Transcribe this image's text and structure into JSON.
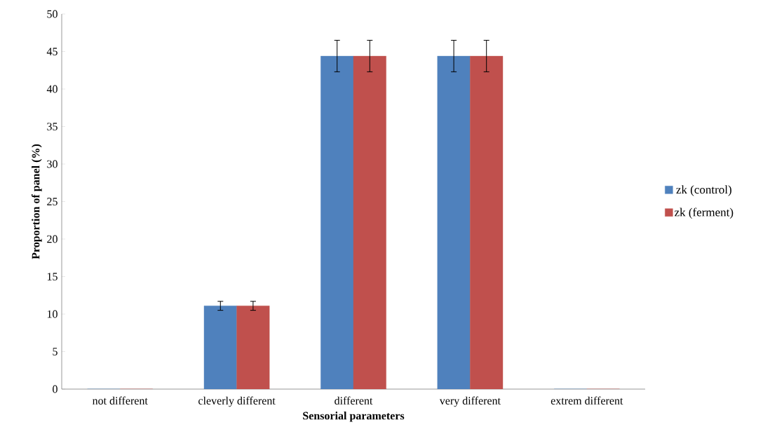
{
  "chart_data": {
    "type": "bar",
    "xlabel": "Sensorial parameters",
    "ylabel": "Proportion of  panel (%)",
    "categories": [
      "not  different",
      "cleverly different",
      "different",
      "very  different",
      "extrem different"
    ],
    "series": [
      {
        "name": "zk (control)",
        "color": "#4f81bd",
        "values": [
          0,
          11.1,
          44.4,
          44.4,
          0
        ],
        "errors": [
          null,
          0.6,
          2.1,
          2.1,
          null
        ]
      },
      {
        "name": "zk (ferment)",
        "color": "#c0504d",
        "values": [
          0,
          11.1,
          44.4,
          44.4,
          0
        ],
        "errors": [
          null,
          0.6,
          2.1,
          2.1,
          null
        ]
      }
    ],
    "ylim": [
      0,
      50
    ],
    "yticks": [
      0,
      5,
      10,
      15,
      20,
      25,
      30,
      35,
      40,
      45,
      50
    ],
    "grid": false,
    "legend": "right"
  }
}
